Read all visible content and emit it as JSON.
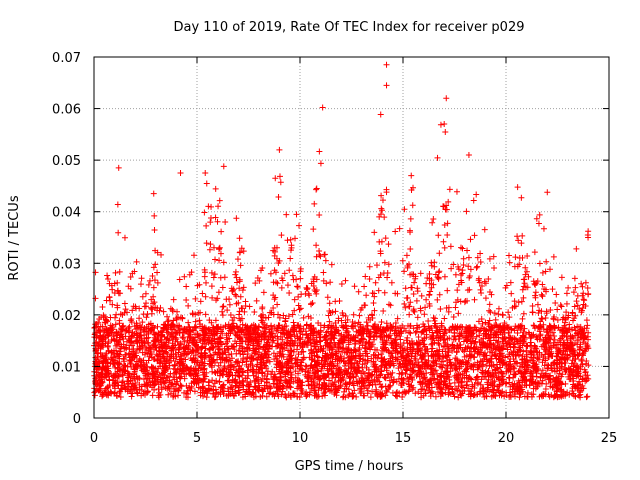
{
  "chart_data": {
    "type": "scatter",
    "title": "Day 110 of 2019, Rate Of TEC Index for receiver p029",
    "xlabel": "GPS time / hours",
    "ylabel": "ROTI / TECUs",
    "xlim": [
      0,
      25
    ],
    "ylim": [
      0,
      0.07
    ],
    "xticks": [
      0,
      5,
      10,
      15,
      20,
      25
    ],
    "xtick_labels": [
      "0",
      "5",
      "10",
      "15",
      "20",
      "25"
    ],
    "yticks": [
      0,
      0.01,
      0.02,
      0.03,
      0.04,
      0.05,
      0.06,
      0.07
    ],
    "ytick_labels": [
      "0",
      "0.01",
      "0.02",
      "0.03",
      "0.04",
      "0.05",
      "0.06",
      "0.07"
    ],
    "grid": true,
    "marker": "+",
    "color": "#ff0000",
    "series": [
      {
        "name": "ROTI",
        "description": "Dense cloud of ROTI values sampled across 0–24 h; baseline ~0.005–0.02, frequent excursions to 0.03–0.05",
        "envelope_hours": [
          0,
          0.5,
          1,
          1.5,
          2,
          2.5,
          3,
          3.5,
          4,
          4.5,
          5,
          5.5,
          6,
          6.5,
          7,
          7.5,
          8,
          8.5,
          9,
          9.5,
          10,
          10.5,
          11,
          11.5,
          12,
          12.5,
          13,
          13.5,
          14,
          14.5,
          15,
          15.5,
          16,
          16.5,
          17,
          17.5,
          18,
          18.5,
          19,
          19.5,
          20,
          20.5,
          21,
          21.5,
          22,
          22.5,
          23,
          23.5,
          24
        ],
        "envelope_high": [
          0.032,
          0.025,
          0.048,
          0.035,
          0.03,
          0.037,
          0.044,
          0.02,
          0.025,
          0.035,
          0.033,
          0.047,
          0.049,
          0.035,
          0.04,
          0.032,
          0.028,
          0.038,
          0.052,
          0.04,
          0.042,
          0.035,
          0.06,
          0.03,
          0.033,
          0.025,
          0.032,
          0.03,
          0.068,
          0.035,
          0.047,
          0.045,
          0.03,
          0.05,
          0.062,
          0.046,
          0.048,
          0.05,
          0.038,
          0.03,
          0.028,
          0.045,
          0.046,
          0.043,
          0.045,
          0.035,
          0.025,
          0.035,
          0.04
        ],
        "baseline_low": 0.004,
        "baseline_mean": 0.011,
        "outliers": [
          {
            "x": 14.2,
            "y": 0.0685
          },
          {
            "x": 14.2,
            "y": 0.0645
          },
          {
            "x": 11.1,
            "y": 0.0602
          },
          {
            "x": 17.1,
            "y": 0.062
          },
          {
            "x": 9.0,
            "y": 0.052
          },
          {
            "x": 17.0,
            "y": 0.057
          },
          {
            "x": 18.2,
            "y": 0.051
          },
          {
            "x": 1.2,
            "y": 0.0485
          },
          {
            "x": 6.3,
            "y": 0.0488
          },
          {
            "x": 4.2,
            "y": 0.0475
          },
          {
            "x": 5.4,
            "y": 0.0475
          },
          {
            "x": 8.8,
            "y": 0.0465
          },
          {
            "x": 15.4,
            "y": 0.047
          },
          {
            "x": 14.2,
            "y": 0.0438
          },
          {
            "x": 2.9,
            "y": 0.0435
          }
        ]
      }
    ]
  }
}
